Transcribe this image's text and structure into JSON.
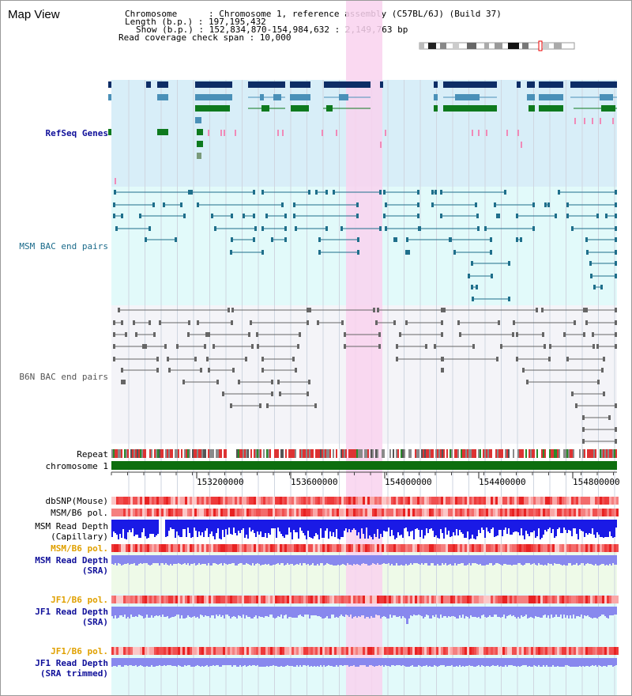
{
  "page": {
    "title": "Map View"
  },
  "info": {
    "chromosome": "Chromosome      : Chromosome 1, reference assembly (C57BL/6J) (Build 37)",
    "length": "Length (b.p.) : 197,195,432",
    "show": "Show (b.p.) : 152,834,870-154,984,632 : 2,149,763 bp",
    "coverage": "Read coverage check span : 10,000"
  },
  "tracks": {
    "refseq": "RefSeq Genes",
    "msm_bac": "MSM BAC end pairs",
    "b6n_bac": "B6N BAC end pairs",
    "repeat": "Repeat",
    "chromosome": "chromosome 1",
    "dbsnp": "dbSNP(Mouse)",
    "msm_b6_pol": "MSM/B6 pol.",
    "msm_depth_cap_1": "MSM Read Depth",
    "msm_depth_cap_2": "(Capillary)",
    "msm_b6_pol_2": "MSM/B6 pol.",
    "msm_depth_sra_1": "MSM Read Depth",
    "msm_depth_sra_2": "(SRA)",
    "jf1_b6_pol": "JF1/B6 pol.",
    "jf1_depth_sra_1": "JF1 Read Depth",
    "jf1_depth_sra_2": "(SRA)",
    "jf1_b6_pol_2": "JF1/B6 pol.",
    "jf1_depth_trim_1": "JF1 Read Depth",
    "jf1_depth_trim_2": "(SRA trimmed)"
  },
  "axis": {
    "ticks": [
      "153200000",
      "153600000",
      "154000000",
      "154400000",
      "154800000"
    ]
  },
  "colors": {
    "gene_navy": "#0d2d66",
    "gene_teal": "#4a90b8",
    "gene_green": "#0e7a1e",
    "refseq_bg": "#d8eef8",
    "msm_bg": "#e2fafa",
    "b6n_bg": "#f4f4f8",
    "highlight": "#f9d2ee",
    "depth_blue": "#1a1ae6",
    "depth_lavender": "#8888ee",
    "label_navy": "#10109a",
    "label_orange": "#e0a000",
    "chromosome_green": "#0e6e0e"
  }
}
